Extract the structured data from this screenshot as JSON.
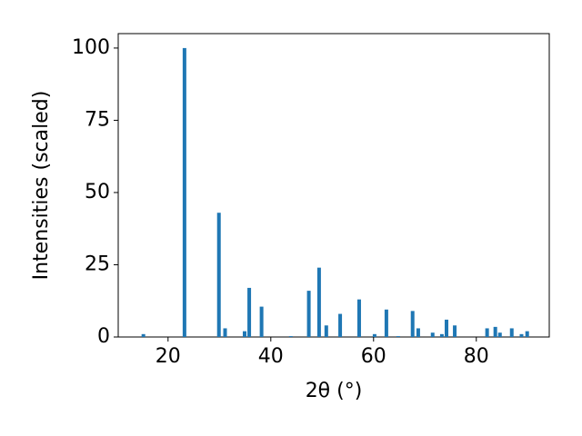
{
  "chart_data": {
    "type": "bar",
    "xlabel": "2θ (°)",
    "ylabel": "Intensities (scaled)",
    "x": [
      15.2,
      23.2,
      29.9,
      31.1,
      34.9,
      35.8,
      38.2,
      43.9,
      47.4,
      49.4,
      50.8,
      53.5,
      57.2,
      60.2,
      62.5,
      64.8,
      67.6,
      68.7,
      71.5,
      73.3,
      74.2,
      75.8,
      82.1,
      83.7,
      84.6,
      86.9,
      88.8,
      89.9
    ],
    "values": [
      1,
      100,
      43,
      3,
      2,
      17,
      10.5,
      0.3,
      16,
      24,
      4,
      8,
      13,
      1,
      9.5,
      0.3,
      9,
      3,
      1.5,
      1,
      6,
      4,
      3,
      3.5,
      1.5,
      3,
      1,
      2
    ],
    "color": "#1f77b4",
    "xlim": [
      10.3,
      94.2
    ],
    "ylim": [
      0,
      105
    ],
    "xticks": [
      20,
      40,
      60,
      80
    ],
    "yticks": [
      0,
      25,
      50,
      75,
      100
    ],
    "grid": false
  }
}
